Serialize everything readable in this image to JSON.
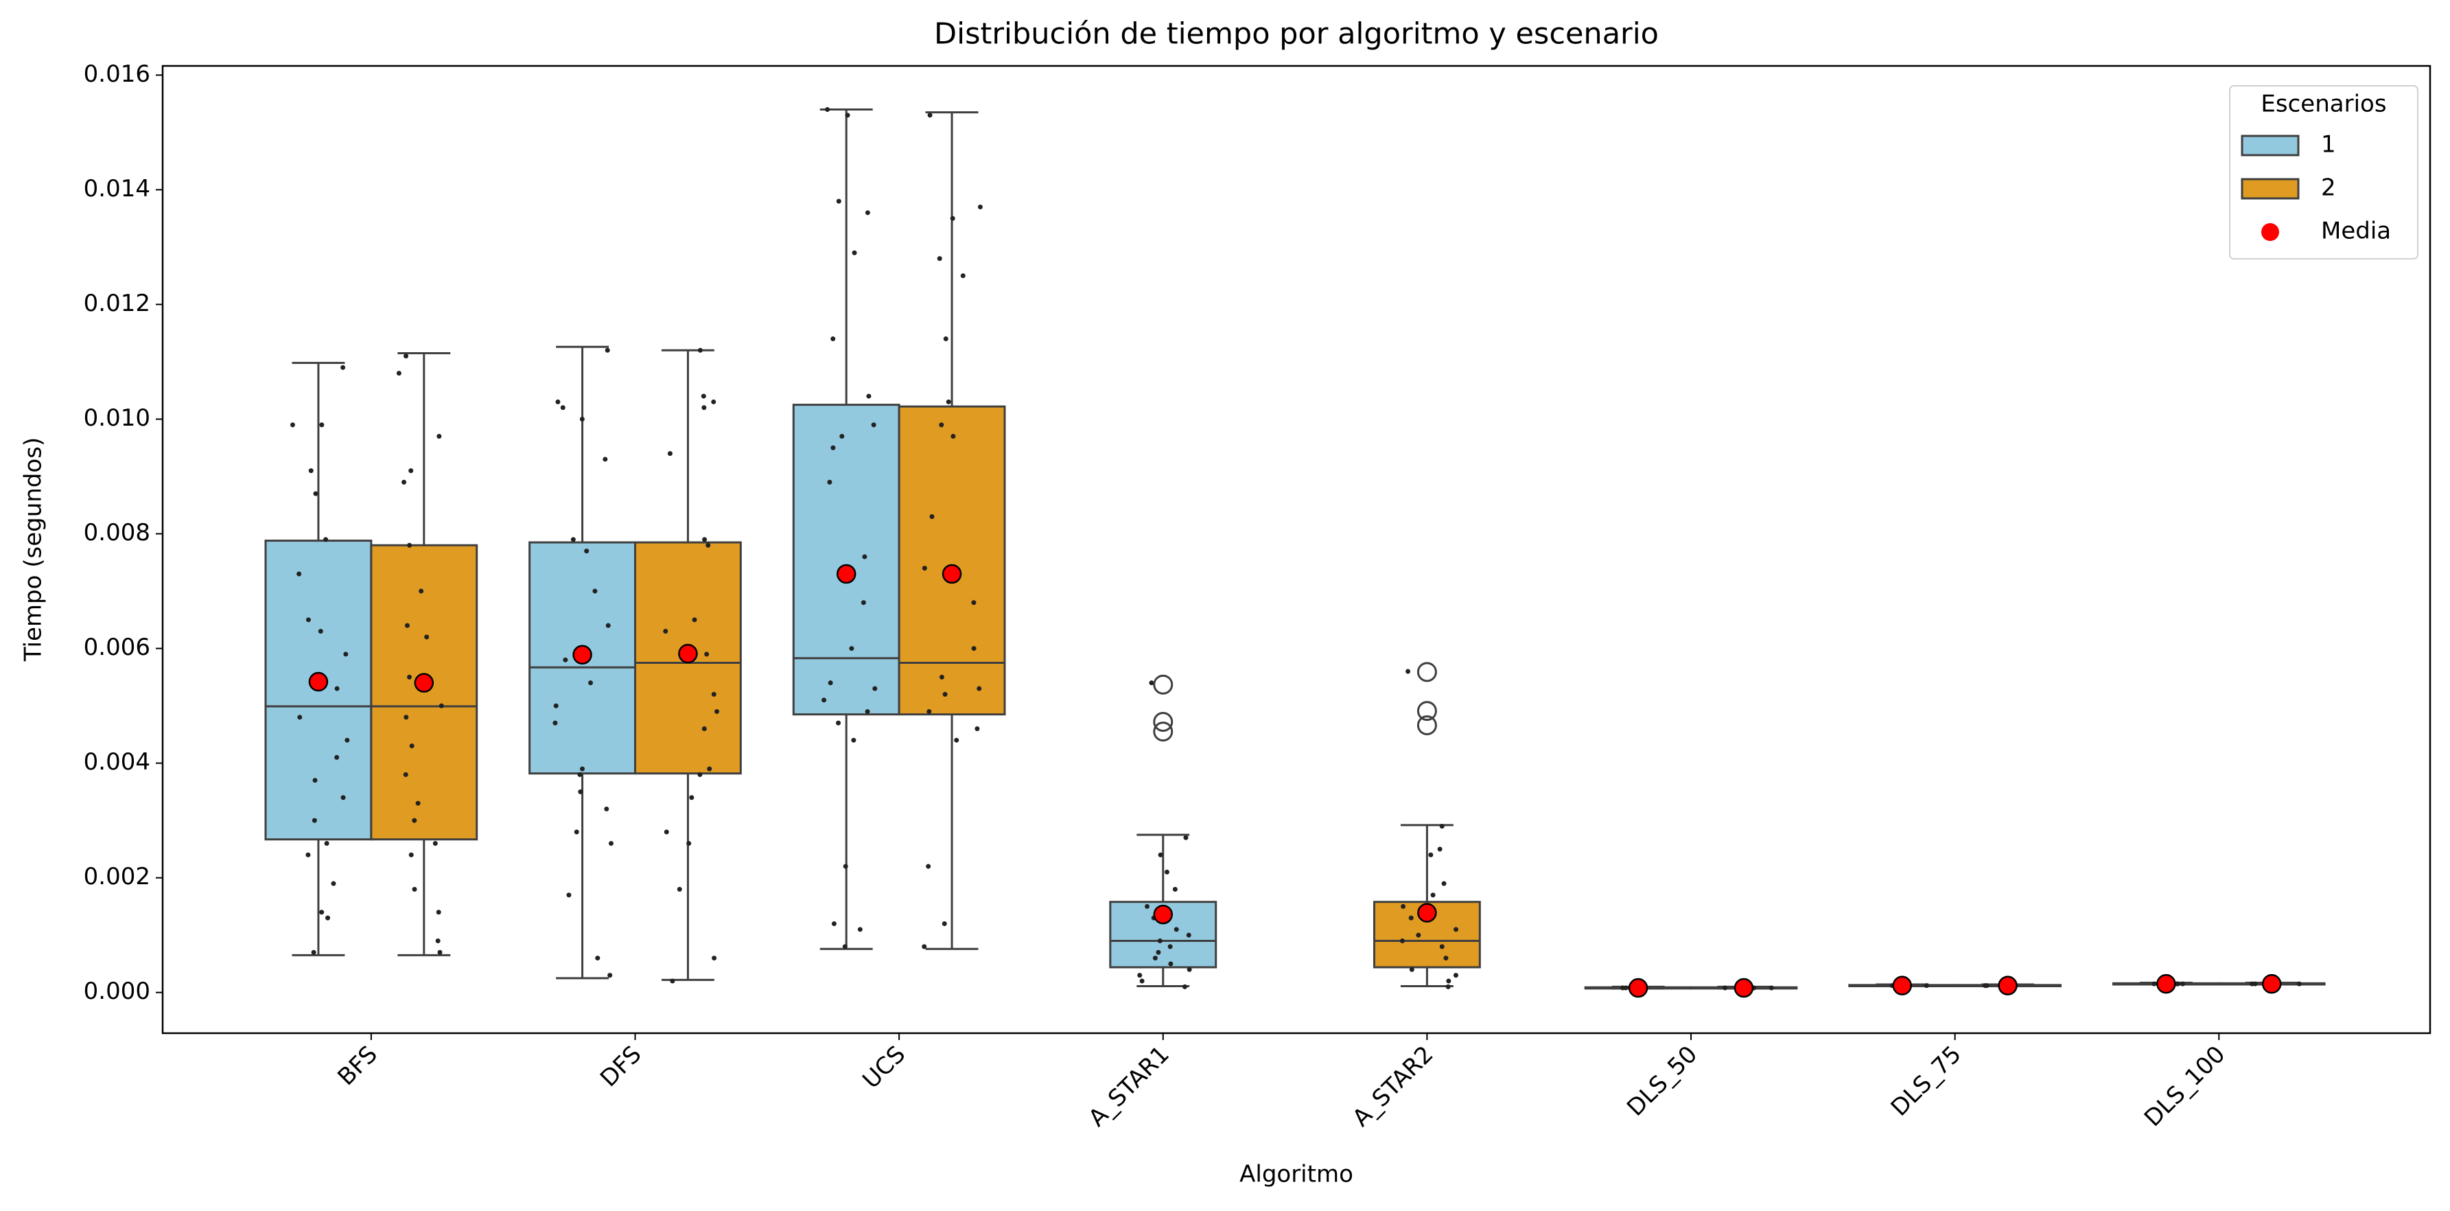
{
  "chart_data": {
    "type": "box",
    "title": "Distribución de tiempo por algoritmo y escenario",
    "x_label": "Algoritmo",
    "y_label": "Tiempo (segundos)",
    "categories": [
      "BFS",
      "DFS",
      "UCS",
      "A_STAR1",
      "A_STAR2",
      "DLS_50",
      "DLS_75",
      "DLS_100"
    ],
    "ylim": [
      -0.00071,
      0.01616
    ],
    "yticks": [
      {
        "value": 0,
        "label": "0.000"
      },
      {
        "value": 0.002,
        "label": "0.002"
      },
      {
        "value": 0.004,
        "label": "0.004"
      },
      {
        "value": 0.006,
        "label": "0.006"
      },
      {
        "value": 0.008,
        "label": "0.008"
      },
      {
        "value": 0.01,
        "label": "0.010"
      },
      {
        "value": 0.012,
        "label": "0.012"
      },
      {
        "value": 0.014,
        "label": "0.014"
      },
      {
        "value": 0.016,
        "label": "0.016"
      }
    ],
    "legend_title": "Escenarios",
    "legend_position": "upper right",
    "mean_label": "Media",
    "mean_color": "#ff0000",
    "series": [
      {
        "name": "1",
        "color": "#93c9df",
        "min": [
          0.00065,
          0.00025,
          0.00076,
          0.00011,
          null,
          7e-05,
          0.00011,
          0.00014
        ],
        "q1": [
          0.00267,
          0.00382,
          0.00485,
          0.00044,
          null,
          7e-05,
          0.00011,
          0.00014
        ],
        "median": [
          0.00499,
          0.00567,
          0.00583,
          0.0009,
          null,
          8e-05,
          0.00012,
          0.00015
        ],
        "q3": [
          0.00788,
          0.00785,
          0.01025,
          0.00158,
          null,
          9e-05,
          0.00013,
          0.00016
        ],
        "max": [
          0.01098,
          0.01126,
          0.0154,
          0.00275,
          null,
          0.0001,
          0.00014,
          0.00017
        ],
        "mean": [
          0.00542,
          0.00589,
          0.0073,
          0.00136,
          null,
          8e-05,
          0.00012,
          0.00015
        ],
        "outliers": [
          [],
          [],
          [],
          [
            0.00537,
            0.00472,
            0.00455
          ],
          null,
          [],
          [],
          []
        ],
        "points": [
          [
            0.0109,
            0.0099,
            0.0099,
            0.0091,
            0.0087,
            0.0079,
            0.0073,
            0.0065,
            0.0063,
            0.0059,
            0.0053,
            0.0048,
            0.0044,
            0.0041,
            0.0037,
            0.0034,
            0.003,
            0.0026,
            0.0024,
            0.0019,
            0.0014,
            0.0013,
            0.0007
          ],
          [
            0.0112,
            0.0103,
            0.0102,
            0.01,
            0.0093,
            0.0079,
            0.0077,
            0.007,
            0.0064,
            0.0058,
            0.0054,
            0.005,
            0.0047,
            0.0039,
            0.0038,
            0.0035,
            0.0032,
            0.0028,
            0.0026,
            0.0017,
            0.0006,
            0.0003
          ],
          [
            0.0154,
            0.0153,
            0.0138,
            0.0136,
            0.0129,
            0.0114,
            0.0104,
            0.0099,
            0.0097,
            0.0095,
            0.0089,
            0.0076,
            0.0068,
            0.006,
            0.0054,
            0.0053,
            0.0051,
            0.0049,
            0.0047,
            0.0044,
            0.0022,
            0.0012,
            0.0011,
            0.0008
          ],
          [
            0.0054,
            0.0027,
            0.0024,
            0.0021,
            0.0018,
            0.0015,
            0.0013,
            0.0011,
            0.001,
            0.0009,
            0.0008,
            0.0007,
            0.0006,
            0.0005,
            0.0004,
            0.0003,
            0.0002,
            0.0001
          ],
          null,
          [
            8e-05,
            8e-05,
            8e-05,
            8e-05
          ],
          [
            0.00012,
            0.00012,
            0.00012,
            0.00012
          ],
          [
            0.00015,
            0.00015,
            0.00015,
            0.00015
          ]
        ]
      },
      {
        "name": "2",
        "color": "#e09b22",
        "min": [
          0.00065,
          0.00022,
          0.00076,
          null,
          0.00011,
          7e-05,
          0.00011,
          0.00014
        ],
        "q1": [
          0.00267,
          0.00382,
          0.00485,
          null,
          0.00044,
          7e-05,
          0.00011,
          0.00014
        ],
        "median": [
          0.00499,
          0.00575,
          0.00575,
          null,
          0.0009,
          8e-05,
          0.00012,
          0.00015
        ],
        "q3": [
          0.0078,
          0.00785,
          0.01022,
          null,
          0.00158,
          9e-05,
          0.00013,
          0.00016
        ],
        "max": [
          0.01115,
          0.0112,
          0.01535,
          null,
          0.00292,
          0.0001,
          0.00014,
          0.00017
        ],
        "mean": [
          0.0054,
          0.00591,
          0.0073,
          null,
          0.00139,
          8e-05,
          0.00012,
          0.00015
        ],
        "outliers": [
          [],
          [],
          [],
          null,
          [
            0.00559,
            0.00491,
            0.00466
          ],
          [],
          [],
          []
        ],
        "points": [
          [
            0.0111,
            0.0108,
            0.0097,
            0.0091,
            0.0089,
            0.0078,
            0.007,
            0.0064,
            0.0062,
            0.0055,
            0.005,
            0.0048,
            0.0043,
            0.0038,
            0.0033,
            0.003,
            0.0026,
            0.0024,
            0.0018,
            0.0014,
            0.0009,
            0.0007
          ],
          [
            0.0112,
            0.0104,
            0.0103,
            0.0102,
            0.0094,
            0.0079,
            0.0078,
            0.0065,
            0.0063,
            0.0059,
            0.0052,
            0.0049,
            0.0046,
            0.0039,
            0.0038,
            0.0034,
            0.0028,
            0.0026,
            0.0018,
            0.0006,
            0.0002
          ],
          [
            0.0153,
            0.0137,
            0.0135,
            0.0128,
            0.0125,
            0.0114,
            0.0103,
            0.0099,
            0.0097,
            0.0083,
            0.0074,
            0.0068,
            0.006,
            0.0055,
            0.0053,
            0.0052,
            0.0049,
            0.0046,
            0.0044,
            0.0022,
            0.0012,
            0.0008
          ],
          null,
          [
            0.0056,
            0.0029,
            0.0025,
            0.0024,
            0.0019,
            0.0017,
            0.0015,
            0.0013,
            0.0011,
            0.001,
            0.0009,
            0.0008,
            0.0006,
            0.0004,
            0.0003,
            0.0002,
            0.0001
          ],
          [
            8e-05,
            8e-05,
            8e-05,
            8e-05
          ],
          [
            0.00012,
            0.00012,
            0.00012,
            0.00012
          ],
          [
            0.00015,
            0.00015,
            0.00015,
            0.00015
          ]
        ]
      }
    ]
  }
}
